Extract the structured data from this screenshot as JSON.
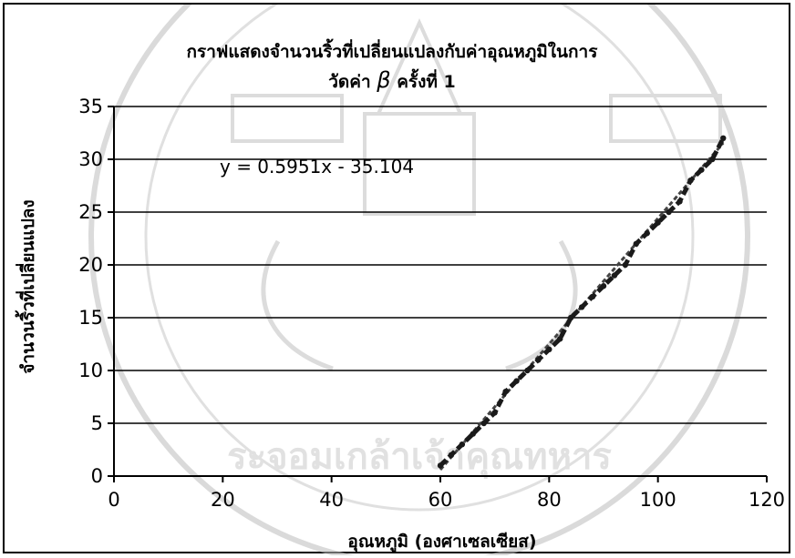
{
  "chart_data": {
    "type": "line",
    "title_line1": "กราฟแสดงจำนวนริ้วที่เปลี่ยนแปลงกับค่าอุณหภูมิในการ",
    "title_line2_prefix": "วัดค่า ",
    "title_line2_symbol": "β",
    "title_line2_suffix": " ครั้งที่ 1",
    "xlabel": "อุณหภูมิ (องศาเซลเซียส)",
    "ylabel": "จำนวนริ้วที่เปลี่ยนแปลง",
    "xlim": [
      0,
      120
    ],
    "ylim": [
      0,
      35
    ],
    "xticks": [
      0,
      20,
      40,
      60,
      80,
      100,
      120
    ],
    "yticks": [
      0,
      5,
      10,
      15,
      20,
      25,
      30,
      35
    ],
    "grid": "horizontal",
    "trendline": {
      "equation": "y = 0.5951x - 35.104",
      "slope": 0.5951,
      "intercept": -35.104,
      "style": "dashed"
    },
    "series": [
      {
        "x": [
          60,
          62,
          64,
          66,
          68,
          70,
          72,
          74,
          76,
          78,
          80,
          82,
          84,
          86,
          88,
          90,
          92,
          94,
          96,
          98,
          100,
          102,
          104,
          106,
          108,
          110,
          112
        ],
        "y": [
          1,
          2,
          3,
          4,
          5,
          6,
          8,
          9,
          10,
          11,
          12,
          13,
          15,
          16,
          17,
          18,
          19,
          20,
          22,
          23,
          24,
          25,
          26,
          28,
          29,
          30,
          32
        ],
        "color": "#1a1a1a"
      }
    ]
  },
  "watermark": {
    "seal_text": "ระจอมเกล้าเจ้าคุณทหาร",
    "color": "#c9c9c9"
  }
}
